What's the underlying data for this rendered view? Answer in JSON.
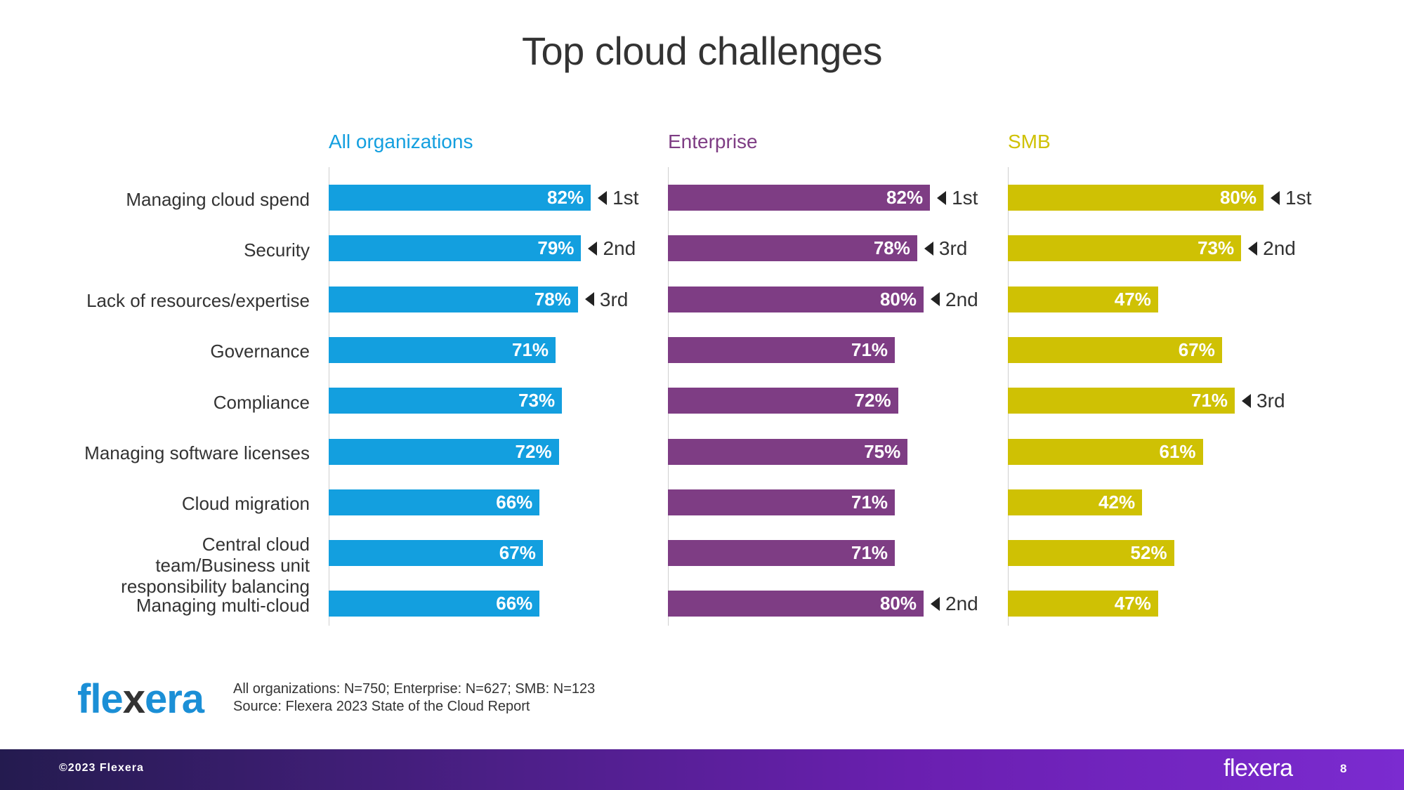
{
  "header": {
    "title": "Top cloud challenges"
  },
  "chart_data": {
    "type": "bar",
    "orientation": "horizontal",
    "title": "Top cloud challenges",
    "categories": [
      "Managing cloud spend",
      "Security",
      "Lack of resources/expertise",
      "Governance",
      "Compliance",
      "Managing software licenses",
      "Cloud migration",
      "Central cloud team/Business unit responsibility balancing",
      "Managing multi-cloud"
    ],
    "series": [
      {
        "name": "All organizations",
        "color": "#139fdf",
        "values": [
          82,
          79,
          78,
          71,
          73,
          72,
          66,
          67,
          66
        ],
        "value_labels": [
          "82%",
          "79%",
          "78%",
          "71%",
          "73%",
          "72%",
          "66%",
          "67%",
          "66%"
        ],
        "ranks": [
          "1st",
          "2nd",
          "3rd",
          "",
          "",
          "",
          "",
          "",
          ""
        ]
      },
      {
        "name": "Enterprise",
        "color": "#7e3d84",
        "values": [
          82,
          78,
          80,
          71,
          72,
          75,
          71,
          71,
          80
        ],
        "value_labels": [
          "82%",
          "78%",
          "80%",
          "71%",
          "72%",
          "75%",
          "71%",
          "71%",
          "80%"
        ],
        "ranks": [
          "1st",
          "3rd",
          "2nd",
          "",
          "",
          "",
          "",
          "",
          "2nd"
        ]
      },
      {
        "name": "SMB",
        "color": "#cfc104",
        "values": [
          80,
          73,
          47,
          67,
          71,
          61,
          42,
          52,
          47
        ],
        "value_labels": [
          "80%",
          "73%",
          "47%",
          "67%",
          "71%",
          "61%",
          "42%",
          "52%",
          "47%"
        ],
        "ranks": [
          "1st",
          "2nd",
          "",
          "",
          "3rd",
          "",
          "",
          "",
          ""
        ]
      }
    ],
    "xlim": [
      0,
      100
    ],
    "grid": false,
    "legend": "none"
  },
  "footer": {
    "logo": "flexera",
    "note_line1": "All organizations: N=750; Enterprise: N=627; SMB: N=123",
    "note_line2": "Source: Flexera 2023 State of the Cloud Report",
    "copyright": "©2023 Flexera",
    "brand": "flexera",
    "page_number": "8"
  }
}
